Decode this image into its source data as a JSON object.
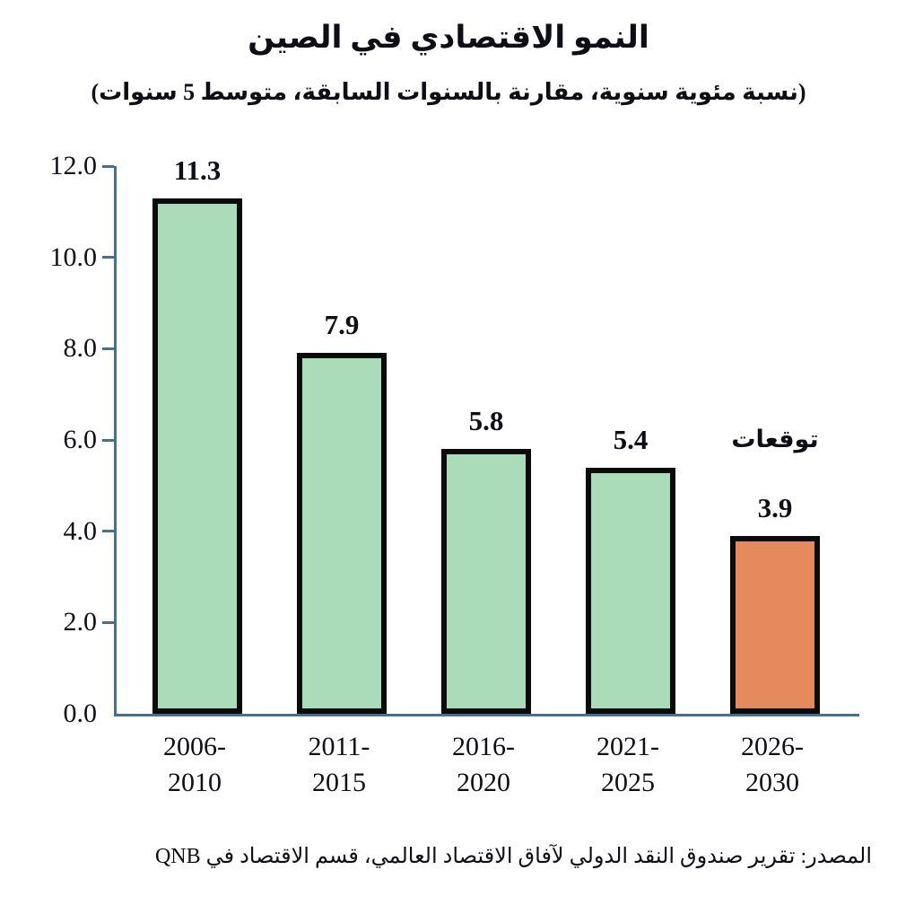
{
  "chart_data": {
    "type": "bar",
    "title": "النمو الاقتصادي في الصين",
    "subtitle": "(نسبة مئوية سنوية، مقارنة بالسنوات السابقة، متوسط 5 سنوات)",
    "categories": [
      "2006-\n2010",
      "2011-\n2015",
      "2016-\n2020",
      "2021-\n2025",
      "2026-\n2030"
    ],
    "values": [
      11.3,
      7.9,
      5.8,
      5.4,
      3.9
    ],
    "value_labels": [
      "11.3",
      "7.9",
      "5.8",
      "5.4",
      "3.9"
    ],
    "ylim": [
      0,
      12
    ],
    "ytick_step": 2,
    "yticks": [
      "0.0",
      "2.0",
      "4.0",
      "6.0",
      "8.0",
      "10.0",
      "12.0"
    ],
    "grid": false,
    "legend": "none",
    "bar_colors": [
      "#abdcba",
      "#abdcba",
      "#abdcba",
      "#abdcba",
      "#e58a5c"
    ],
    "bar_border_color": "#0b0b0b",
    "axis_color": "#46718a",
    "forecast_annotation": {
      "text": "توقعات",
      "bar_index": 4
    },
    "source": "المصدر: تقرير صندوق النقد الدولي لآفاق الاقتصاد العالمي، قسم الاقتصاد في QNB"
  }
}
